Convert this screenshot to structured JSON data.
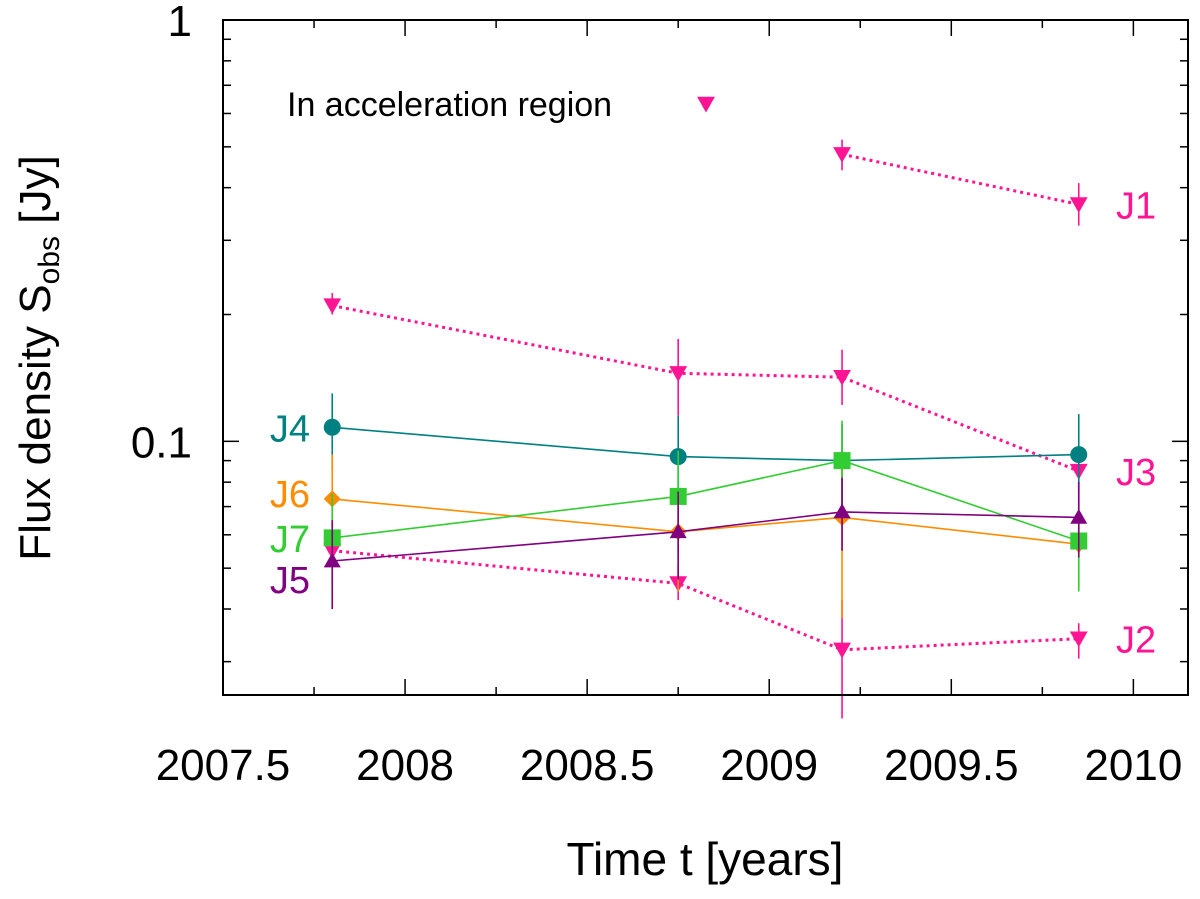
{
  "chart_data": {
    "type": "line",
    "title": "",
    "xlabel": "Time t [years]",
    "ylabel": "Flux density",
    "ylabel_symbol": "S",
    "ylabel_sub": "obs",
    "ylabel_unit": "[Jy]",
    "xlim": [
      2007.5,
      2010.15
    ],
    "ylim": [
      0.025,
      1.0
    ],
    "yscale": "log",
    "xticks": [
      2007.5,
      2008,
      2008.5,
      2009,
      2009.5,
      2010
    ],
    "xtick_labels": [
      "2007.5",
      "2008",
      "2008.5",
      "2009",
      "2009.5",
      "2010"
    ],
    "yticks": [
      0.1,
      1
    ],
    "ytick_labels": [
      "0.1",
      "1"
    ],
    "grid": false,
    "legend": {
      "label": "In acceleration region",
      "marker": "triangle-down",
      "color": "#ff1493",
      "placement": "top-left"
    },
    "series": [
      {
        "name": "J1",
        "label": "J1",
        "color": "#ff1493",
        "marker": "triangle-down",
        "dashed": true,
        "accel": true,
        "x": [
          2009.2,
          2009.85
        ],
        "y": [
          0.48,
          0.365
        ],
        "yerr_lo": [
          0.44,
          0.325
        ],
        "yerr_hi": [
          0.52,
          0.41
        ]
      },
      {
        "name": "J3",
        "label": "J3",
        "color": "#ff1493",
        "marker": "triangle-down",
        "dashed": true,
        "accel": true,
        "x": [
          2007.8,
          2008.75,
          2009.2,
          2009.85
        ],
        "y": [
          0.21,
          0.145,
          0.142,
          0.085
        ],
        "yerr_lo": [
          0.2,
          0.115,
          0.122,
          0.07
        ],
        "yerr_hi": [
          0.225,
          0.175,
          0.165,
          0.095
        ]
      },
      {
        "name": "J2",
        "label": "J2",
        "color": "#ff1493",
        "marker": "triangle-down",
        "dashed": true,
        "accel": true,
        "x": [
          2007.8,
          2008.75,
          2009.2,
          2009.85
        ],
        "y": [
          0.055,
          0.046,
          0.032,
          0.034
        ],
        "yerr_lo": [
          0.051,
          0.042,
          0.022,
          0.0305
        ],
        "yerr_hi": [
          0.059,
          0.051,
          0.042,
          0.037
        ]
      },
      {
        "name": "J4",
        "label": "J4",
        "color": "#008080",
        "marker": "circle",
        "dashed": false,
        "accel": false,
        "x": [
          2007.8,
          2008.75,
          2009.2,
          2009.85
        ],
        "y": [
          0.108,
          0.092,
          0.09,
          0.093
        ],
        "yerr_lo": [
          0.085,
          0.07,
          0.07,
          0.075
        ],
        "yerr_hi": [
          0.13,
          0.115,
          0.11,
          0.116
        ]
      },
      {
        "name": "J6",
        "label": "J6",
        "color": "#ff8c00",
        "marker": "diamond",
        "dashed": false,
        "accel": false,
        "x": [
          2007.8,
          2008.75,
          2009.2,
          2009.85
        ],
        "y": [
          0.073,
          0.061,
          0.066,
          0.057
        ],
        "yerr_lo": [
          0.055,
          0.044,
          0.038,
          0.045
        ],
        "yerr_hi": [
          0.093,
          0.075,
          0.095,
          0.07
        ]
      },
      {
        "name": "J7",
        "label": "J7",
        "color": "#32cd32",
        "marker": "square",
        "dashed": false,
        "accel": false,
        "x": [
          2007.8,
          2008.75,
          2009.2,
          2009.85
        ],
        "y": [
          0.059,
          0.074,
          0.09,
          0.058
        ],
        "yerr_lo": [
          0.044,
          0.055,
          0.07,
          0.044
        ],
        "yerr_hi": [
          0.075,
          0.095,
          0.112,
          0.072
        ]
      },
      {
        "name": "J5",
        "label": "J5",
        "color": "#800080",
        "marker": "triangle-up",
        "dashed": false,
        "accel": false,
        "x": [
          2007.8,
          2008.75,
          2009.2,
          2009.85
        ],
        "y": [
          0.052,
          0.061,
          0.068,
          0.066
        ],
        "yerr_lo": [
          0.04,
          0.047,
          0.055,
          0.053
        ],
        "yerr_hi": [
          0.065,
          0.076,
          0.082,
          0.08
        ]
      }
    ]
  }
}
